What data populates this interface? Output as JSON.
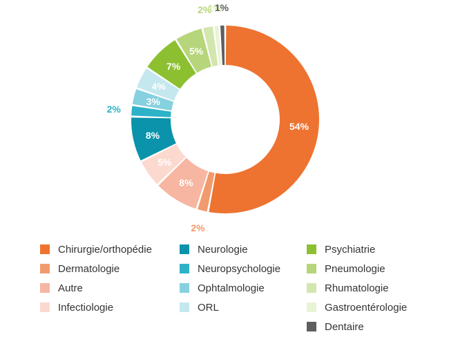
{
  "chart_data": {
    "type": "pie",
    "donut": true,
    "legend_position": "bottom",
    "start": "top, clockwise",
    "slices": [
      {
        "label": "Chirurgie/orthopédie",
        "value": 54,
        "display": "54%",
        "color": "#EE7330",
        "label_color": "#ffffff"
      },
      {
        "label": "Dermatologie",
        "value": 2,
        "display": "2%",
        "color": "#F19A6D",
        "label_color": "#F19A6D"
      },
      {
        "label": "Autre",
        "value": 8,
        "display": "8%",
        "color": "#F7B6A1",
        "label_color": "#ffffff"
      },
      {
        "label": "Infectiologie",
        "value": 5,
        "display": "5%",
        "color": "#FCD9CE",
        "label_color": "#ffffff"
      },
      {
        "label": "Neurologie",
        "value": 8,
        "display": "8%",
        "color": "#0A93AA",
        "label_color": "#ffffff"
      },
      {
        "label": "Neuropsychologie",
        "value": 2,
        "display": "2%",
        "color": "#2DB2C8",
        "label_color": "#2DB2C8"
      },
      {
        "label": "Ophtalmologie",
        "value": 3,
        "display": "3%",
        "color": "#86D1DF",
        "label_color": "#ffffff"
      },
      {
        "label": "ORL",
        "value": 4,
        "display": "4%",
        "color": "#C5E8EF",
        "label_color": "#ffffff"
      },
      {
        "label": "Psychiatrie",
        "value": 7,
        "display": "7%",
        "color": "#8CC031",
        "label_color": "#ffffff"
      },
      {
        "label": "Pneumologie",
        "value": 5,
        "display": "5%",
        "color": "#B7D57A",
        "label_color": "#ffffff"
      },
      {
        "label": "Rhumatologie",
        "value": 2,
        "display": "2%",
        "color": "#D3E6AE",
        "label_color": "#B7D57A"
      },
      {
        "label": "Gastroentérologie",
        "value": 1,
        "display": "1%",
        "color": "#E9F3D6",
        "label_color": "#D3E6AE"
      },
      {
        "label": "Dentaire",
        "value": 1,
        "display": "1%",
        "color": "#5E5E5E",
        "label_color": "#5E5E5E"
      }
    ]
  },
  "legend": [
    {
      "label": "Chirurgie/orthopédie",
      "color": "#EE7330"
    },
    {
      "label": "Dermatologie",
      "color": "#F19A6D"
    },
    {
      "label": "Autre",
      "color": "#F7B6A1"
    },
    {
      "label": "Infectiologie",
      "color": "#FCD9CE"
    },
    {
      "label": "Neurologie",
      "color": "#0A93AA"
    },
    {
      "label": "Neuropsychologie",
      "color": "#2DB2C8"
    },
    {
      "label": "Ophtalmologie",
      "color": "#86D1DF"
    },
    {
      "label": "ORL",
      "color": "#C5E8EF"
    },
    {
      "label": "Psychiatrie",
      "color": "#8CC031"
    },
    {
      "label": "Pneumologie",
      "color": "#B7D57A"
    },
    {
      "label": "Rhumatologie",
      "color": "#D3E6AE"
    },
    {
      "label": "Gastroentérologie",
      "color": "#E9F3D6"
    },
    {
      "label": "Dentaire",
      "color": "#5E5E5E"
    }
  ]
}
